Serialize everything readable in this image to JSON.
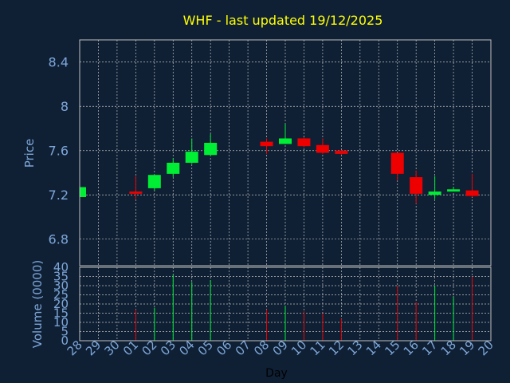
{
  "chart_data": {
    "type": "candlestick",
    "title": "WHF - last updated 19/12/2025",
    "xlabel": "Day",
    "price": {
      "ylabel": "Price",
      "ylim": [
        6.56,
        8.6
      ],
      "yticks": [
        "6.8",
        "7.2",
        "7.6",
        "8",
        "8.4"
      ]
    },
    "volume": {
      "ylabel": "Volume (0000)",
      "ylim": [
        0,
        40
      ],
      "yticks": [
        "0",
        "5",
        "10",
        "15",
        "20",
        "25",
        "30",
        "35",
        "40"
      ]
    },
    "categories": [
      "28",
      "29",
      "30",
      "01",
      "02",
      "03",
      "04",
      "05",
      "06",
      "07",
      "08",
      "09",
      "10",
      "11",
      "12",
      "13",
      "14",
      "15",
      "16",
      "17",
      "18",
      "19",
      "20"
    ],
    "candles": [
      {
        "day": "28",
        "open": 7.18,
        "high": 7.27,
        "low": 7.18,
        "close": 7.27,
        "volume": 0
      },
      {
        "day": "01",
        "open": 7.23,
        "high": 7.37,
        "low": 7.16,
        "close": 7.21,
        "volume": 17
      },
      {
        "day": "02",
        "open": 7.26,
        "high": 7.38,
        "low": 7.24,
        "close": 7.38,
        "volume": 18
      },
      {
        "day": "03",
        "open": 7.39,
        "high": 7.53,
        "low": 7.36,
        "close": 7.49,
        "volume": 36
      },
      {
        "day": "04",
        "open": 7.49,
        "high": 7.71,
        "low": 7.48,
        "close": 7.59,
        "volume": 32
      },
      {
        "day": "05",
        "open": 7.56,
        "high": 7.75,
        "low": 7.56,
        "close": 7.67,
        "volume": 33
      },
      {
        "day": "08",
        "open": 7.68,
        "high": 7.71,
        "low": 7.57,
        "close": 7.64,
        "volume": 17
      },
      {
        "day": "09",
        "open": 7.66,
        "high": 7.84,
        "low": 7.66,
        "close": 7.71,
        "volume": 19
      },
      {
        "day": "10",
        "open": 7.71,
        "high": 7.72,
        "low": 7.63,
        "close": 7.64,
        "volume": 16
      },
      {
        "day": "11",
        "open": 7.65,
        "high": 7.71,
        "low": 7.57,
        "close": 7.58,
        "volume": 15
      },
      {
        "day": "12",
        "open": 7.6,
        "high": 7.6,
        "low": 7.56,
        "close": 7.57,
        "volume": 12
      },
      {
        "day": "15",
        "open": 7.58,
        "high": 7.58,
        "low": 7.33,
        "close": 7.39,
        "volume": 30
      },
      {
        "day": "16",
        "open": 7.36,
        "high": 7.42,
        "low": 7.12,
        "close": 7.21,
        "volume": 21
      },
      {
        "day": "17",
        "open": 7.2,
        "high": 7.37,
        "low": 7.16,
        "close": 7.23,
        "volume": 30
      },
      {
        "day": "18",
        "open": 7.23,
        "high": 7.27,
        "low": 7.23,
        "close": 7.25,
        "volume": 24
      },
      {
        "day": "19",
        "open": 7.24,
        "high": 7.39,
        "low": 7.18,
        "close": 7.19,
        "volume": 35
      }
    ],
    "colors": {
      "background": "#0f2035",
      "up": "#00ee33",
      "down": "#ee0000",
      "title": "#ffff00",
      "axis_text": "#7da6d8",
      "frame": "#c0c0c0",
      "grid": "#c0c0c0"
    },
    "grid": true
  }
}
